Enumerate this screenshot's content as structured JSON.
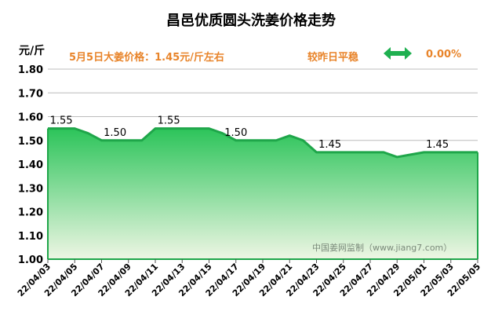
{
  "header": {
    "title": "昌邑优质圆头洗姜价格走势",
    "unit": "元/斤",
    "headline": "5月5日大姜价格：1.45元/斤左右",
    "trend_text": "较昨日平稳",
    "change_text": "0.00%",
    "watermark": "中国姜网监制（www.jiang7.com）"
  },
  "colors": {
    "line": "#1fa64a",
    "fill_top": "#2cc45a",
    "fill_bottom": "#eef6e4",
    "accent_text": "#e8842a",
    "trend_icon": "#1fb050"
  },
  "icons": {
    "trend": "double-arrow-icon"
  },
  "chart_data": {
    "type": "area",
    "title": "昌邑优质圆头洗姜价格走势",
    "ylabel": "元/斤",
    "xlabel": "",
    "ylim": [
      1.0,
      1.8
    ],
    "yticks": [
      "1.00",
      "1.10",
      "1.20",
      "1.30",
      "1.40",
      "1.50",
      "1.60",
      "1.70",
      "1.80"
    ],
    "xticks": [
      "22/04/03",
      "22/04/05",
      "22/04/07",
      "22/04/09",
      "22/04/11",
      "22/04/13",
      "22/04/15",
      "22/04/17",
      "22/04/19",
      "22/04/21",
      "22/04/23",
      "22/04/25",
      "22/04/27",
      "22/04/29",
      "22/05/01",
      "22/05/03",
      "22/05/05"
    ],
    "grid": true,
    "series": [
      {
        "x": [
          "22/04/03",
          "22/04/04",
          "22/04/05",
          "22/04/06",
          "22/04/07",
          "22/04/08",
          "22/04/09",
          "22/04/10",
          "22/04/11",
          "22/04/12",
          "22/04/13",
          "22/04/14",
          "22/04/15",
          "22/04/16",
          "22/04/17",
          "22/04/18",
          "22/04/19",
          "22/04/20",
          "22/04/21",
          "22/04/22",
          "22/04/23",
          "22/04/24",
          "22/04/25",
          "22/04/26",
          "22/04/27",
          "22/04/28",
          "22/04/29",
          "22/04/30",
          "22/05/01",
          "22/05/02",
          "22/05/03",
          "22/05/04",
          "22/05/05"
        ],
        "values": [
          1.55,
          1.55,
          1.55,
          1.53,
          1.5,
          1.5,
          1.5,
          1.5,
          1.55,
          1.55,
          1.55,
          1.55,
          1.55,
          1.53,
          1.5,
          1.5,
          1.5,
          1.5,
          1.52,
          1.5,
          1.45,
          1.45,
          1.45,
          1.45,
          1.45,
          1.45,
          1.43,
          1.44,
          1.45,
          1.45,
          1.45,
          1.45,
          1.45
        ]
      }
    ],
    "data_labels": [
      {
        "x": "22/04/04",
        "text": "1.55"
      },
      {
        "x": "22/04/08",
        "text": "1.50"
      },
      {
        "x": "22/04/12",
        "text": "1.55"
      },
      {
        "x": "22/04/17",
        "text": "1.50"
      },
      {
        "x": "22/04/24",
        "text": "1.45"
      },
      {
        "x": "22/05/02",
        "text": "1.45"
      }
    ]
  }
}
